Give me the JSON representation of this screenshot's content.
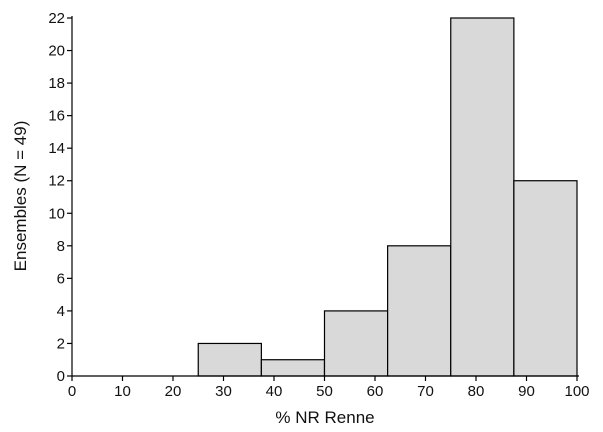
{
  "chart_data": {
    "type": "bar",
    "subtype": "histogram",
    "bins": [
      {
        "start": 25,
        "end": 37.5,
        "value": 2
      },
      {
        "start": 37.5,
        "end": 50,
        "value": 1
      },
      {
        "start": 50,
        "end": 62.5,
        "value": 4
      },
      {
        "start": 62.5,
        "end": 75,
        "value": 8
      },
      {
        "start": 75,
        "end": 87.5,
        "value": 22
      },
      {
        "start": 87.5,
        "end": 100,
        "value": 12
      }
    ],
    "xlabel": "% NR Renne",
    "ylabel": "Ensembles (N = 49)",
    "xlim": [
      0,
      100
    ],
    "ylim": [
      0,
      22
    ],
    "xticks": [
      0,
      10,
      20,
      30,
      40,
      50,
      60,
      70,
      80,
      90,
      100
    ],
    "yticks": [
      0,
      2,
      4,
      6,
      8,
      10,
      12,
      14,
      16,
      18,
      20,
      22
    ],
    "grid": false,
    "bar_fill": "#d9d9d9",
    "bar_stroke": "#000000"
  }
}
